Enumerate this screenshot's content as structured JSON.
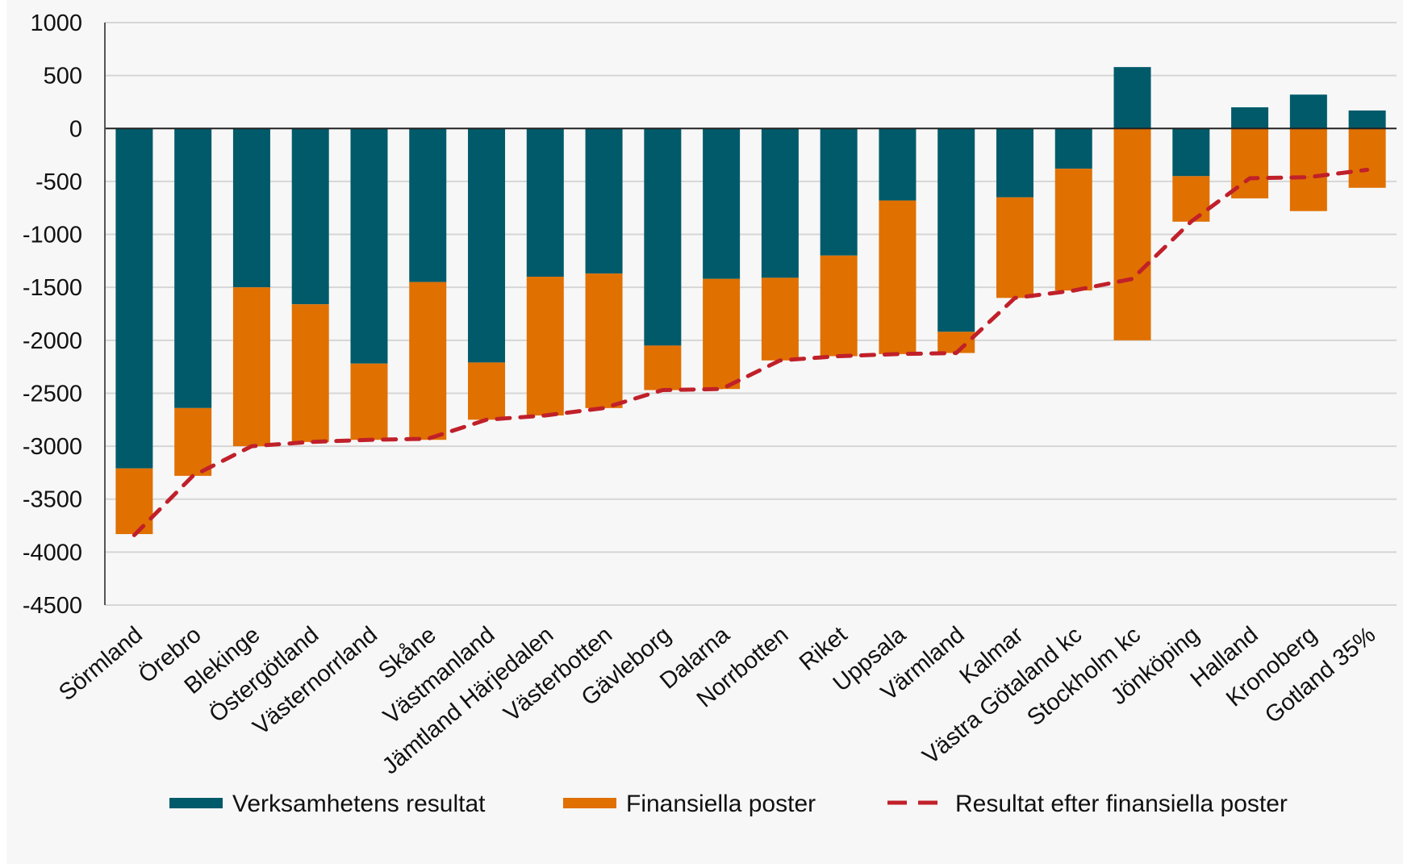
{
  "chart_data": {
    "type": "bar",
    "stacked": true,
    "title": "",
    "xlabel": "",
    "ylabel": "",
    "ylim": [
      -4500,
      1000
    ],
    "yticks": [
      1000,
      500,
      0,
      -500,
      -1000,
      -1500,
      -2000,
      -2500,
      -3000,
      -3500,
      -4000,
      -4500
    ],
    "grid": true,
    "legend_position": "bottom",
    "categories": [
      "Sörmland",
      "Örebro",
      "Blekinge",
      "Östergötland",
      "Västernorrland",
      "Skåne",
      "Västmanland",
      "Jämtland Härjedalen",
      "Västerbotten",
      "Gävleborg",
      "Dalarna",
      "Norrbotten",
      "Riket",
      "Uppsala",
      "Värmland",
      "Kalmar",
      "Västra Götaland kc",
      "Stockholm kc",
      "Jönköping",
      "Halland",
      "Kronoberg",
      "Gotland 35%"
    ],
    "series": [
      {
        "name": "Verksamhetens resultat",
        "kind": "bar",
        "color": "#005a6a",
        "values": [
          -3210,
          -2640,
          -1500,
          -1660,
          -2220,
          -1450,
          -2210,
          -1400,
          -1370,
          -2050,
          -1420,
          -1410,
          -1200,
          -680,
          -1920,
          -650,
          -380,
          580,
          -450,
          200,
          320,
          170
        ]
      },
      {
        "name": "Finansiella poster",
        "kind": "bar",
        "color": "#e07000",
        "values": [
          -620,
          -640,
          -1500,
          -1300,
          -720,
          -1490,
          -540,
          -1310,
          -1270,
          -420,
          -1040,
          -780,
          -950,
          -1450,
          -200,
          -950,
          -1150,
          -2000,
          -430,
          -660,
          -780,
          -560
        ]
      },
      {
        "name": "Resultat efter finansiella poster",
        "kind": "line",
        "style": "dashed",
        "color": "#c0202a",
        "values": [
          -3840,
          -3280,
          -3000,
          -2960,
          -2940,
          -2930,
          -2750,
          -2710,
          -2640,
          -2470,
          -2460,
          -2190,
          -2150,
          -2130,
          -2120,
          -1600,
          -1530,
          -1420,
          -880,
          -470,
          -460,
          -390
        ]
      }
    ]
  }
}
